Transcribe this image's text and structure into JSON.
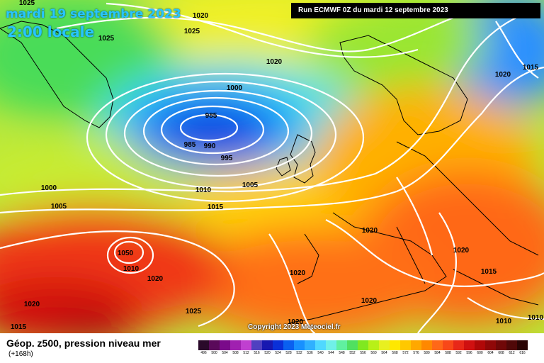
{
  "header": {
    "date": "mardi 19 septembre 2023",
    "time": "2:00 locale",
    "run": "Run ECMWF 0Z du mardi 12 septembre 2023"
  },
  "footer": {
    "copyright": "Copyright 2023 Meteociel.fr",
    "title": "Géop. z500, pression niveau mer",
    "lead": "(+168h)"
  },
  "isobar_labels": [
    "1025",
    "1020",
    "1025",
    "1025",
    "1020",
    "1015",
    "1020",
    "1000",
    "985",
    "985",
    "990",
    "995",
    "1005",
    "1000",
    "1010",
    "1005",
    "1015",
    "1020",
    "1050",
    "1010",
    "1020",
    "1020",
    "1020",
    "1025",
    "1020",
    "1020",
    "1015",
    "1020",
    "1015",
    "1010",
    "1010"
  ],
  "scale": {
    "values": [
      "496",
      "500",
      "504",
      "508",
      "512",
      "516",
      "520",
      "524",
      "528",
      "532",
      "536",
      "540",
      "544",
      "548",
      "552",
      "556",
      "560",
      "564",
      "568",
      "572",
      "576",
      "580",
      "584",
      "588",
      "592",
      "596",
      "600",
      "604",
      "608",
      "612",
      "616"
    ],
    "colors": [
      "#2a0a2a",
      "#5a0a5a",
      "#7a0a8a",
      "#a020b0",
      "#c040d0",
      "#5040c0",
      "#1818b0",
      "#0a30d8",
      "#0a60f0",
      "#1890ff",
      "#30b0ff",
      "#50d8ff",
      "#70f0e8",
      "#60f0a0",
      "#50e060",
      "#80e820",
      "#b8f018",
      "#e8f020",
      "#ffe800",
      "#ffc800",
      "#ffa800",
      "#ff8800",
      "#ff6818",
      "#f84818",
      "#e82818",
      "#d01010",
      "#b00808",
      "#900808",
      "#700808",
      "#500808",
      "#2a0404"
    ]
  }
}
